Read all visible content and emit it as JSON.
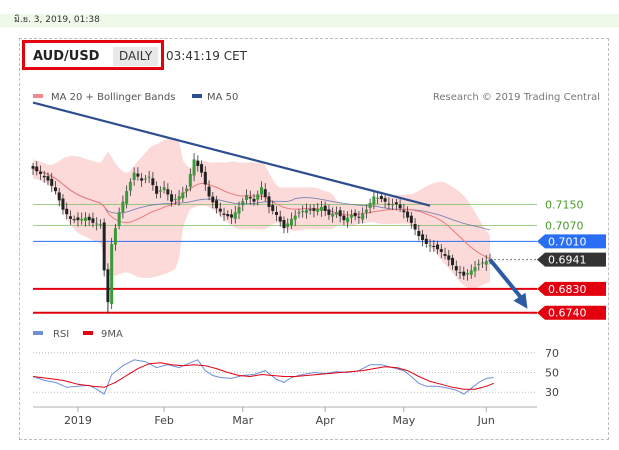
{
  "header": {
    "date": "มิ.ย. 3, 2019, 01:38",
    "pair": "AUD/USD",
    "timeframe": "DAILY",
    "time": "03:41:19 CET"
  },
  "chart_data": [
    {
      "type": "candlestick",
      "legend": [
        "MA 20 + Bollinger Bands",
        "MA 50"
      ],
      "credit": "Research © 2019 Trading Central",
      "levels": [
        {
          "value": 0.715,
          "label": "0.7150",
          "color": "#7cc060",
          "style": "text"
        },
        {
          "value": 0.707,
          "label": "0.7070",
          "color": "#7cc060",
          "style": "text"
        },
        {
          "value": 0.701,
          "label": "0.7010",
          "color": "#2a6ef5",
          "style": "badge"
        },
        {
          "value": 0.6941,
          "label": "0.6941",
          "color": "#333333",
          "style": "badge"
        },
        {
          "value": 0.683,
          "label": "0.6830",
          "color": "#e3000f",
          "style": "badge"
        },
        {
          "value": 0.674,
          "label": "0.6740",
          "color": "#e3000f",
          "style": "badge"
        }
      ],
      "ylim": [
        0.672,
        0.7575
      ],
      "trendline": {
        "from": [
          0,
          0.7535
        ],
        "to": [
          106,
          0.7145
        ]
      },
      "forecast_arrow": {
        "from": [
          122,
          0.6941
        ],
        "to": [
          132,
          0.6755
        ]
      },
      "close_path": [
        [
          0,
          0.7285
        ],
        [
          2,
          0.7265
        ],
        [
          4,
          0.724
        ],
        [
          6,
          0.72
        ],
        [
          8,
          0.713
        ],
        [
          10,
          0.7095
        ],
        [
          12,
          0.709
        ],
        [
          14,
          0.71
        ],
        [
          16,
          0.708
        ],
        [
          18,
          0.7075
        ],
        [
          19,
          0.69
        ],
        [
          20,
          0.678
        ],
        [
          21,
          0.7
        ],
        [
          23,
          0.712
        ],
        [
          25,
          0.72
        ],
        [
          27,
          0.727
        ],
        [
          29,
          0.724
        ],
        [
          31,
          0.7255
        ],
        [
          33,
          0.719
        ],
        [
          35,
          0.7215
        ],
        [
          37,
          0.716
        ],
        [
          39,
          0.718
        ],
        [
          41,
          0.721
        ],
        [
          43,
          0.732
        ],
        [
          45,
          0.727
        ],
        [
          47,
          0.718
        ],
        [
          49,
          0.7135
        ],
        [
          51,
          0.711
        ],
        [
          53,
          0.71
        ],
        [
          55,
          0.714
        ],
        [
          57,
          0.7185
        ],
        [
          59,
          0.716
        ],
        [
          61,
          0.7215
        ],
        [
          63,
          0.714
        ],
        [
          65,
          0.711
        ],
        [
          67,
          0.706
        ],
        [
          69,
          0.7095
        ],
        [
          71,
          0.712
        ],
        [
          73,
          0.713
        ],
        [
          75,
          0.7125
        ],
        [
          77,
          0.714
        ],
        [
          79,
          0.711
        ],
        [
          81,
          0.712
        ],
        [
          83,
          0.709
        ],
        [
          85,
          0.711
        ],
        [
          87,
          0.71
        ],
        [
          89,
          0.713
        ],
        [
          91,
          0.718
        ],
        [
          93,
          0.717
        ],
        [
          95,
          0.715
        ],
        [
          97,
          0.715
        ],
        [
          99,
          0.712
        ],
        [
          101,
          0.708
        ],
        [
          103,
          0.703
        ],
        [
          105,
          0.7
        ],
        [
          107,
          0.699
        ],
        [
          109,
          0.697
        ],
        [
          111,
          0.694
        ],
        [
          113,
          0.69
        ],
        [
          115,
          0.688
        ],
        [
          117,
          0.69
        ],
        [
          119,
          0.6925
        ],
        [
          121,
          0.6935
        ],
        [
          122,
          0.6941
        ]
      ],
      "x_count": 123
    },
    {
      "type": "line",
      "legend": [
        "RSI",
        "9MA"
      ],
      "ylim": [
        20,
        75
      ],
      "levels": [
        70,
        50,
        30
      ],
      "categories": [
        "2019",
        "Feb",
        "Mar",
        "Apr",
        "May",
        "Jun"
      ],
      "rsi": [
        [
          0,
          46
        ],
        [
          3,
          42
        ],
        [
          6,
          40
        ],
        [
          9,
          35
        ],
        [
          12,
          36
        ],
        [
          15,
          37
        ],
        [
          17,
          33
        ],
        [
          19,
          28
        ],
        [
          21,
          48
        ],
        [
          24,
          57
        ],
        [
          27,
          63
        ],
        [
          30,
          61
        ],
        [
          33,
          55
        ],
        [
          36,
          58
        ],
        [
          39,
          55
        ],
        [
          42,
          60
        ],
        [
          44,
          63
        ],
        [
          46,
          52
        ],
        [
          48,
          47
        ],
        [
          50,
          45
        ],
        [
          53,
          44
        ],
        [
          56,
          47
        ],
        [
          59,
          48
        ],
        [
          62,
          52
        ],
        [
          65,
          43
        ],
        [
          67,
          40
        ],
        [
          69,
          45
        ],
        [
          72,
          48
        ],
        [
          75,
          50
        ],
        [
          78,
          49
        ],
        [
          81,
          51
        ],
        [
          84,
          50
        ],
        [
          87,
          52
        ],
        [
          90,
          58
        ],
        [
          93,
          58
        ],
        [
          96,
          55
        ],
        [
          99,
          52
        ],
        [
          101,
          46
        ],
        [
          103,
          39
        ],
        [
          105,
          36
        ],
        [
          108,
          36
        ],
        [
          111,
          34
        ],
        [
          113,
          32
        ],
        [
          115,
          28
        ],
        [
          117,
          34
        ],
        [
          119,
          40
        ],
        [
          121,
          44
        ],
        [
          123,
          45
        ]
      ],
      "ma9": [
        [
          0,
          46
        ],
        [
          4,
          44
        ],
        [
          8,
          42
        ],
        [
          12,
          38
        ],
        [
          16,
          36
        ],
        [
          19,
          35
        ],
        [
          22,
          40
        ],
        [
          25,
          47
        ],
        [
          28,
          54
        ],
        [
          31,
          59
        ],
        [
          34,
          60
        ],
        [
          37,
          58
        ],
        [
          40,
          57
        ],
        [
          43,
          58
        ],
        [
          46,
          57
        ],
        [
          49,
          54
        ],
        [
          52,
          50
        ],
        [
          55,
          47
        ],
        [
          58,
          46
        ],
        [
          61,
          48
        ],
        [
          64,
          47
        ],
        [
          67,
          46
        ],
        [
          70,
          46
        ],
        [
          73,
          47
        ],
        [
          76,
          48
        ],
        [
          79,
          49
        ],
        [
          82,
          50
        ],
        [
          85,
          51
        ],
        [
          88,
          52
        ],
        [
          91,
          54
        ],
        [
          94,
          56
        ],
        [
          97,
          55
        ],
        [
          100,
          52
        ],
        [
          103,
          46
        ],
        [
          106,
          41
        ],
        [
          109,
          38
        ],
        [
          112,
          35
        ],
        [
          115,
          33
        ],
        [
          118,
          33
        ],
        [
          121,
          36
        ],
        [
          123,
          39
        ]
      ]
    }
  ]
}
